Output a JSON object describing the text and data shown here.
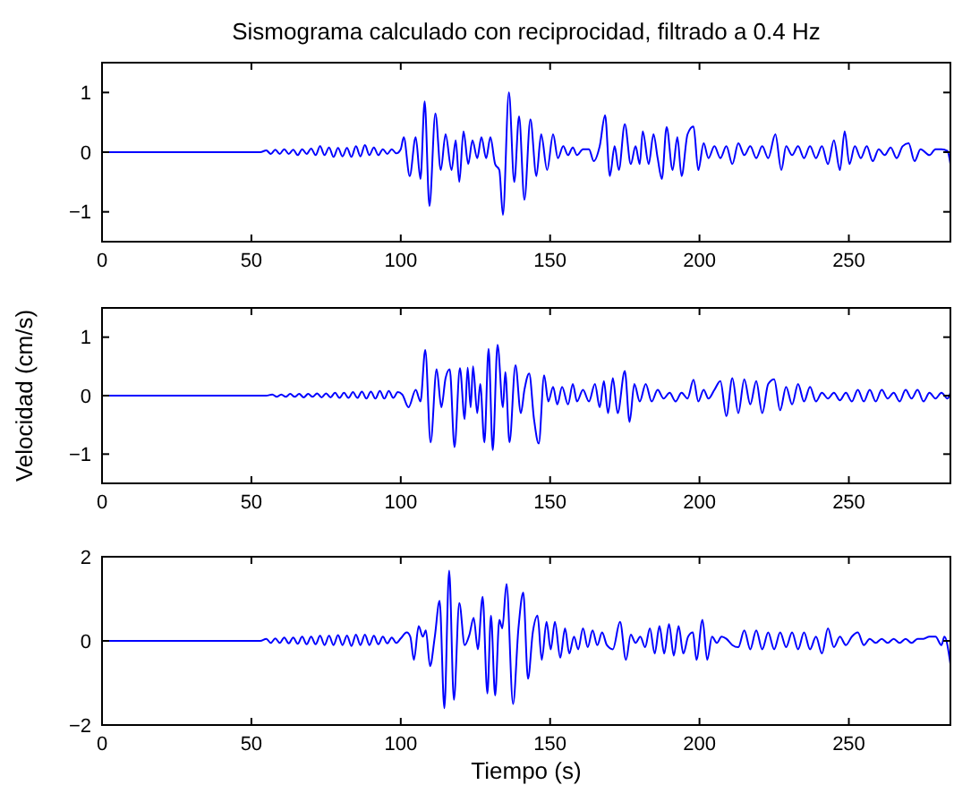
{
  "chart_data": [
    {
      "type": "line",
      "title": "Sismograma calculado con reciprocidad, filtrado a 0.4 Hz",
      "xlim": [
        0,
        284
      ],
      "xticks": [
        0,
        50,
        100,
        150,
        200,
        250
      ],
      "ylim": [
        -1.5,
        1.5
      ],
      "yticks": [
        -1,
        0,
        1
      ],
      "series": [
        {
          "color": "#0000ff",
          "x": [
            0,
            53,
            55,
            56.5,
            58,
            59.5,
            61,
            62.5,
            64,
            65.5,
            67,
            68.5,
            70,
            71.5,
            73,
            74.5,
            76,
            77.5,
            79,
            80.5,
            82,
            83.5,
            85,
            86.5,
            88,
            89.5,
            91,
            92.5,
            94,
            95.5,
            97,
            98.5,
            100,
            101,
            103,
            105,
            106.6,
            108,
            109.6,
            111.6,
            113.4,
            115,
            117,
            118.4,
            119.6,
            121,
            122.6,
            124,
            125.6,
            127,
            128.6,
            130,
            131.6,
            133,
            134.2,
            136.2,
            138,
            139.6,
            141.4,
            143.4,
            145.4,
            147,
            149,
            151,
            152.6,
            154.4,
            156,
            157.6,
            159,
            161,
            163,
            164.6,
            166.6,
            168.4,
            170,
            171.6,
            173,
            175,
            177,
            178.6,
            180,
            181,
            183,
            184.6,
            186,
            187.4,
            189,
            191,
            192.6,
            194,
            196,
            198,
            199.6,
            201.4,
            203,
            205,
            207,
            209,
            211,
            213,
            215,
            217,
            219,
            221,
            223,
            225.4,
            227.4,
            229,
            231,
            233,
            235,
            237,
            239,
            241,
            243,
            245,
            247,
            248.6,
            250.2,
            252,
            254,
            256,
            258,
            260,
            262,
            264,
            266,
            268,
            270,
            272,
            274,
            277,
            279,
            281,
            283,
            284
          ],
          "values": [
            0,
            0,
            0.03,
            -0.03,
            0.04,
            -0.03,
            0.05,
            -0.03,
            0.04,
            -0.05,
            0.05,
            -0.03,
            0.06,
            -0.05,
            0.1,
            -0.05,
            0.08,
            -0.08,
            0.07,
            -0.07,
            0.07,
            -0.08,
            0.1,
            -0.07,
            0.12,
            -0.05,
            0.08,
            -0.05,
            0.05,
            -0.03,
            0.05,
            -0.02,
            0.05,
            0.25,
            -0.4,
            0.25,
            -0.45,
            0.85,
            -0.9,
            0.65,
            -0.3,
            0.3,
            -0.3,
            0.2,
            -0.5,
            0.35,
            -0.2,
            0.2,
            -0.1,
            0.25,
            -0.1,
            0.25,
            -0.2,
            -0.3,
            -1.05,
            1,
            -0.5,
            0.6,
            -0.8,
            0.55,
            -0.4,
            0.3,
            -0.3,
            0.3,
            -0.1,
            0.1,
            -0.05,
            0.08,
            -0.05,
            0.05,
            0.05,
            -0.15,
            0.1,
            0.62,
            -0.4,
            0.1,
            -0.3,
            0.47,
            -0.2,
            0.1,
            -0.2,
            0.35,
            -0.2,
            0.3,
            -0.1,
            -0.45,
            0.42,
            -0.3,
            0.25,
            -0.4,
            0.3,
            0.43,
            -0.3,
            0.15,
            -0.1,
            0.1,
            -0.1,
            0.1,
            -0.2,
            0.15,
            -0.05,
            0.1,
            -0.1,
            0.1,
            -0.1,
            0.3,
            -0.3,
            0.1,
            -0.05,
            0.1,
            -0.1,
            0.1,
            -0.1,
            0.1,
            -0.2,
            0.2,
            -0.3,
            0.35,
            -0.2,
            0.1,
            -0.1,
            0.1,
            -0.15,
            0.05,
            -0.05,
            0.08,
            -0.1,
            0.1,
            0.15,
            -0.15,
            0.05,
            -0.05,
            0.05,
            0.05,
            0.02,
            -0.2
          ]
        }
      ]
    },
    {
      "type": "line",
      "ylabel": "Velocidad (cm/s)",
      "xlim": [
        0,
        284
      ],
      "xticks": [
        0,
        50,
        100,
        150,
        200,
        250
      ],
      "ylim": [
        -1.5,
        1.5
      ],
      "yticks": [
        -1,
        0,
        1
      ],
      "series": [
        {
          "color": "#0000ff",
          "x": [
            0,
            55,
            57,
            58.5,
            60,
            61.5,
            63,
            64.5,
            66,
            67.5,
            69,
            70.5,
            72,
            73.5,
            75,
            76.5,
            78,
            79.5,
            81,
            82.5,
            84,
            85.5,
            87,
            88.5,
            90,
            91.5,
            93,
            94.5,
            96,
            97.5,
            99,
            100.5,
            102.6,
            105,
            106.6,
            108.2,
            110,
            112,
            113.6,
            115,
            116.4,
            118,
            119.8,
            121.4,
            122.4,
            123.4,
            124.2,
            125.6,
            126.6,
            128,
            129.4,
            130.8,
            132.4,
            134.2,
            135,
            136.4,
            138.4,
            140.2,
            141.4,
            143,
            144.6,
            146.2,
            148,
            149.4,
            151,
            152.4,
            154,
            156,
            157.6,
            159,
            161,
            163,
            165,
            166.6,
            168,
            169.4,
            171,
            172.6,
            175,
            176.6,
            178.2,
            180,
            182,
            184,
            186,
            188,
            190,
            192,
            194,
            196,
            198,
            199.6,
            201.4,
            203,
            205,
            207,
            209,
            211,
            213,
            215,
            217,
            219,
            221,
            223,
            225,
            227,
            229,
            231,
            233,
            235,
            237,
            239,
            241,
            243,
            245,
            247,
            249,
            251,
            253,
            255,
            257,
            259,
            261,
            263,
            265,
            267,
            269,
            271,
            273,
            275,
            277,
            279,
            281,
            283,
            284
          ],
          "values": [
            0,
            0,
            0.02,
            -0.02,
            0.02,
            -0.02,
            0.03,
            -0.02,
            0.03,
            -0.03,
            0.03,
            -0.02,
            0.04,
            -0.03,
            0.04,
            -0.03,
            0.05,
            -0.04,
            0.05,
            -0.04,
            0.06,
            -0.04,
            0.07,
            -0.05,
            0.07,
            -0.05,
            0.08,
            -0.05,
            0.08,
            -0.04,
            0.06,
            0.02,
            -0.2,
            0.1,
            -0.1,
            0.78,
            -0.8,
            0.45,
            -0.2,
            0.3,
            0.45,
            -0.88,
            0.47,
            -0.4,
            0.48,
            -0.2,
            0.5,
            -0.3,
            0.2,
            -0.8,
            0.8,
            -0.93,
            0.87,
            -0.2,
            0.4,
            -0.8,
            0.52,
            -0.3,
            0.1,
            0.38,
            -0.4,
            -0.82,
            0.35,
            -0.1,
            0.15,
            -0.15,
            0.15,
            -0.15,
            0.2,
            -0.1,
            0.1,
            -0.1,
            0.2,
            -0.2,
            0.25,
            -0.3,
            0.3,
            -0.3,
            0.42,
            -0.45,
            0.2,
            -0.1,
            0.2,
            -0.1,
            0.1,
            -0.05,
            0.05,
            -0.1,
            0.05,
            -0.05,
            0.27,
            -0.1,
            0.1,
            -0.05,
            0.1,
            0.25,
            -0.35,
            0.3,
            -0.3,
            0.28,
            -0.15,
            0.25,
            -0.3,
            0.2,
            0.28,
            -0.25,
            0.15,
            -0.15,
            0.2,
            -0.1,
            0.15,
            -0.1,
            0.05,
            -0.05,
            0.05,
            -0.08,
            0.05,
            -0.1,
            0.1,
            -0.1,
            0.1,
            -0.1,
            0.1,
            -0.05,
            0.05,
            -0.1,
            0.1,
            -0.05,
            0.1,
            -0.1,
            0.05,
            -0.05,
            0.05,
            -0.05,
            0.05
          ]
        }
      ]
    },
    {
      "type": "line",
      "xlabel": "Tiempo (s)",
      "xlim": [
        0,
        284
      ],
      "xticks": [
        0,
        50,
        100,
        150,
        200,
        250
      ],
      "ylim": [
        -2,
        2
      ],
      "yticks": [
        -2,
        0,
        2
      ],
      "series": [
        {
          "color": "#0000ff",
          "x": [
            0,
            53,
            55,
            56.5,
            58,
            59.5,
            61,
            62.5,
            64,
            65.5,
            67,
            68.5,
            70,
            71.5,
            73,
            74.5,
            76,
            77.5,
            79,
            80.5,
            82,
            83.5,
            85,
            86.5,
            88,
            89.5,
            91,
            92.5,
            94,
            95.5,
            97,
            98.5,
            100,
            102,
            103.2,
            104.4,
            106,
            107.4,
            108.4,
            109.8,
            111.4,
            113,
            114.6,
            116.2,
            117.8,
            119.6,
            121.4,
            123,
            124.4,
            125.8,
            127.4,
            129,
            130.2,
            131.6,
            133,
            134,
            135.4,
            137.6,
            139.4,
            141,
            142.6,
            144.2,
            145.8,
            147.2,
            148.8,
            150.2,
            151.6,
            153.4,
            155,
            156.4,
            158,
            159.4,
            161,
            162.6,
            164.2,
            165.8,
            167.4,
            169,
            171,
            173.4,
            175.4,
            177,
            178.6,
            180.2,
            181.8,
            183.4,
            185,
            186.6,
            188.2,
            189.8,
            191.4,
            193,
            194.6,
            196.2,
            197.8,
            199,
            201,
            202.6,
            204.2,
            205.8,
            207.4,
            209,
            211,
            213,
            215,
            217,
            219,
            221,
            223,
            225,
            227,
            229,
            231,
            233,
            235,
            237,
            239,
            241,
            243,
            245,
            247,
            249,
            251,
            253,
            255,
            257,
            259,
            261,
            263,
            265,
            267,
            269,
            271,
            273,
            275,
            277,
            279,
            281,
            282,
            284
          ],
          "values": [
            0,
            0,
            0.05,
            -0.05,
            0.06,
            -0.05,
            0.08,
            -0.06,
            0.08,
            -0.07,
            0.1,
            -0.08,
            0.1,
            -0.08,
            0.12,
            -0.1,
            0.12,
            -0.1,
            0.14,
            -0.1,
            0.13,
            -0.12,
            0.15,
            -0.1,
            0.15,
            -0.1,
            0.12,
            -0.08,
            0.1,
            -0.06,
            0.08,
            -0.05,
            0.06,
            0.2,
            0.1,
            -0.45,
            0.35,
            0.1,
            0.25,
            -0.6,
            0.1,
            0.95,
            -1.6,
            1.67,
            -1.4,
            0.9,
            -0.1,
            0.15,
            0.55,
            -0.2,
            1.05,
            -1.25,
            0.6,
            -1.3,
            0.5,
            0.3,
            1.35,
            -1.5,
            0.3,
            1.15,
            -0.9,
            0.2,
            0.6,
            -0.45,
            0.45,
            -0.2,
            0.45,
            -0.4,
            0.3,
            -0.3,
            0.1,
            -0.2,
            0.3,
            -0.15,
            0.25,
            -0.1,
            0.2,
            -0.1,
            -0.2,
            0.45,
            -0.45,
            0.15,
            -0.05,
            0.1,
            -0.15,
            0.3,
            -0.3,
            0.35,
            -0.3,
            0.4,
            -0.35,
            0.35,
            -0.3,
            0.1,
            0.2,
            -0.45,
            0.5,
            -0.45,
            0.1,
            -0.05,
            0.1,
            0.05,
            -0.1,
            -0.15,
            0.25,
            -0.2,
            0.25,
            -0.2,
            0.2,
            -0.2,
            0.2,
            -0.15,
            0.2,
            -0.2,
            0.2,
            -0.2,
            0.1,
            -0.3,
            0.3,
            -0.15,
            0.1,
            -0.1,
            0.1,
            0.2,
            -0.1,
            0.05,
            -0.05,
            0.05,
            -0.05,
            0.05,
            -0.05,
            0.05,
            -0.05,
            0.05,
            0.05,
            0.1,
            0.1,
            -0.1,
            0.1,
            -0.55
          ]
        }
      ]
    }
  ]
}
